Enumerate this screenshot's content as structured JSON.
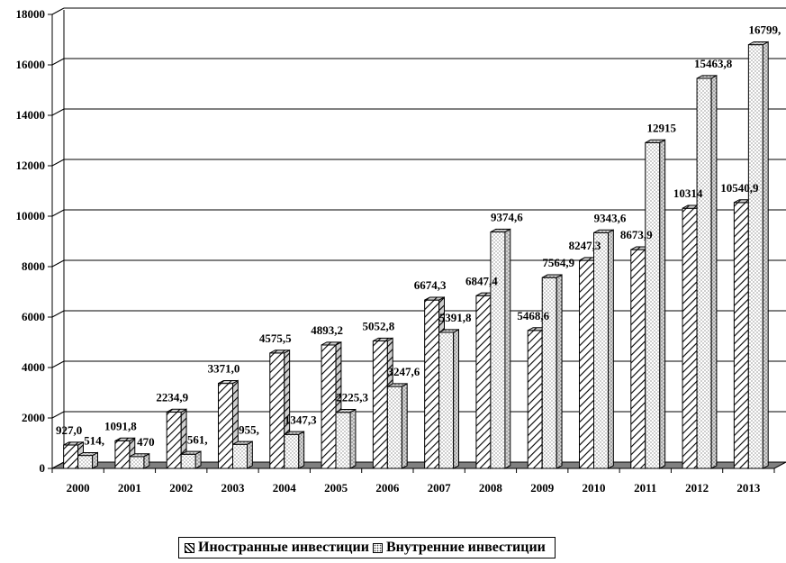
{
  "chart_data": {
    "type": "bar",
    "categories": [
      "2000",
      "2001",
      "2002",
      "2003",
      "2004",
      "2005",
      "2006",
      "2007",
      "2008",
      "2009",
      "2010",
      "2011",
      "2012",
      "2013"
    ],
    "series": [
      {
        "name": "Иностранные инвестиции",
        "pattern": "hatch",
        "values": [
          927.0,
          1091.8,
          2234.9,
          3371.0,
          4575.5,
          4893.2,
          5052.8,
          6674.3,
          6847.4,
          5468.6,
          8247.3,
          8673.9,
          10314,
          10540.9
        ],
        "labels": [
          "927,0",
          "1091,8",
          "2234,9",
          "3371,0",
          "4575,5",
          "4893,2",
          "5052,8",
          "6674,3",
          "6847,4",
          "5468,6",
          "8247,3",
          "8673,9",
          "10314",
          "10540,9"
        ]
      },
      {
        "name": "Внутренние инвестиции",
        "pattern": "dots",
        "values": [
          514,
          470,
          561,
          955,
          1347.3,
          2225.3,
          3247.6,
          5391.8,
          9374.6,
          7564.9,
          9343.6,
          12915,
          15463.8,
          16799
        ],
        "labels": [
          "514,",
          "470",
          "561,",
          "955,",
          "1347,3",
          "2225,3",
          "3247,6",
          "5391,8",
          "9374,6",
          "7564,9",
          "9343,6",
          "12915",
          "15463,8",
          "16799,"
        ]
      }
    ],
    "yticks": [
      "0",
      "2000",
      "4000",
      "6000",
      "8000",
      "10000",
      "12000",
      "14000",
      "16000",
      "18000"
    ],
    "ylim": [
      0,
      18000
    ],
    "grid": true,
    "legend": "bottom"
  }
}
